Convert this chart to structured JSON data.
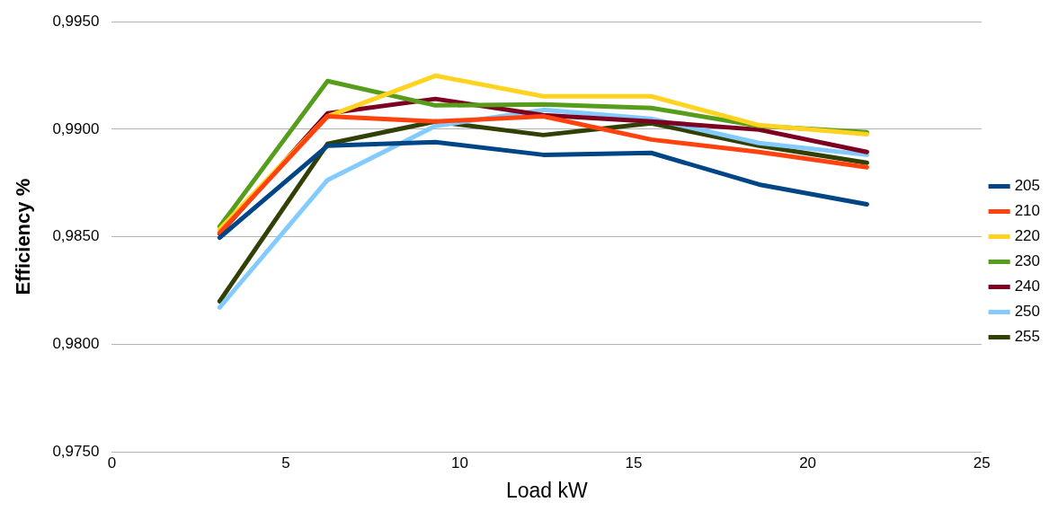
{
  "chart_data": {
    "type": "line",
    "xlabel": "Load kW",
    "ylabel": "Efficiency %",
    "x": [
      3.1,
      6.2,
      9.3,
      12.4,
      15.5,
      18.6,
      21.7
    ],
    "series": [
      {
        "name": "205",
        "color": "#004586",
        "values": [
          0.98496,
          0.98923,
          0.9894,
          0.98881,
          0.9889,
          0.98743,
          0.98651
        ]
      },
      {
        "name": "210",
        "color": "#ff420e",
        "values": [
          0.98518,
          0.9906,
          0.99036,
          0.9906,
          0.98952,
          0.98894,
          0.98823
        ]
      },
      {
        "name": "220",
        "color": "#ffd320",
        "values": [
          0.98535,
          0.9906,
          0.99249,
          0.99153,
          0.99153,
          0.99019,
          0.98977
        ]
      },
      {
        "name": "230",
        "color": "#579d1c",
        "values": [
          0.98547,
          0.99224,
          0.99111,
          0.99115,
          0.99099,
          0.99015,
          0.98986
        ]
      },
      {
        "name": "240",
        "color": "#7e0021",
        "values": [
          0.98514,
          0.99074,
          0.99141,
          0.99065,
          0.99036,
          0.98998,
          0.98894
        ]
      },
      {
        "name": "250",
        "color": "#83caff",
        "values": [
          0.98171,
          0.98764,
          0.99015,
          0.9909,
          0.99049,
          0.98936,
          0.98881
        ]
      },
      {
        "name": "255",
        "color": "#314004",
        "values": [
          0.982,
          0.98932,
          0.99036,
          0.98973,
          0.99028,
          0.98923,
          0.98844
        ]
      }
    ],
    "xlim": [
      0,
      25
    ],
    "xticks": [
      0,
      5,
      10,
      15,
      20,
      25
    ],
    "ylim": [
      0.975,
      0.995
    ],
    "yticks": [
      {
        "value": 0.975,
        "label": "0,9750"
      },
      {
        "value": 0.98,
        "label": "0,9800"
      },
      {
        "value": 0.985,
        "label": "0,9850"
      },
      {
        "value": 0.99,
        "label": "0,9900"
      },
      {
        "value": 0.995,
        "label": "0,9950"
      }
    ],
    "grid": "y",
    "legend": "right",
    "marker": "none",
    "line_style": "solid"
  }
}
